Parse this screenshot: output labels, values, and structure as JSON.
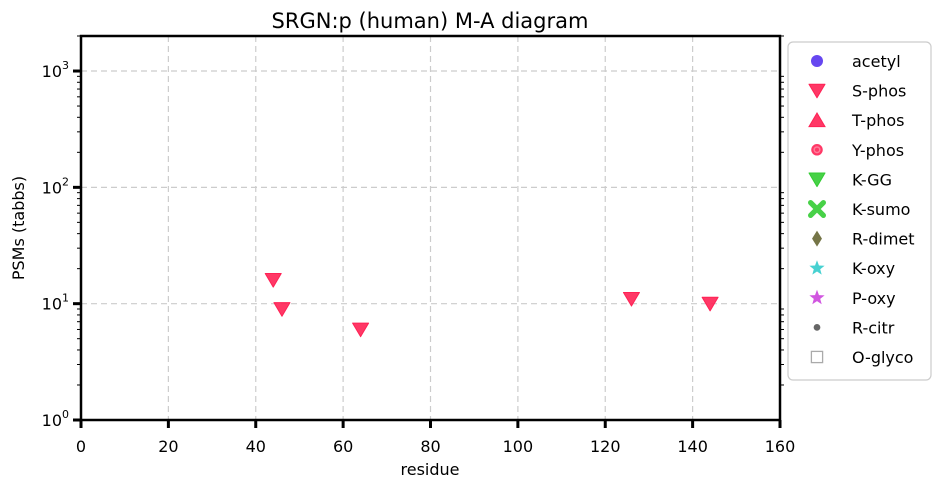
{
  "chart_data": {
    "type": "scatter",
    "title": "SRGN:p (human) M-A diagram",
    "xlabel": "residue",
    "ylabel": "PSMs (tabbs)",
    "xlim": [
      0,
      160
    ],
    "ylim": [
      1,
      2000
    ],
    "yscale": "log",
    "grid": true,
    "legend_position": "outside-right",
    "x_ticks": [
      "0",
      "20",
      "40",
      "60",
      "80",
      "100",
      "120",
      "140",
      "160"
    ],
    "y_ticks": [
      {
        "value": 1,
        "base": "10",
        "exp": "0"
      },
      {
        "value": 10,
        "base": "10",
        "exp": "1"
      },
      {
        "value": 100,
        "base": "10",
        "exp": "2"
      },
      {
        "value": 1000,
        "base": "10",
        "exp": "3"
      }
    ],
    "legend": [
      {
        "label": "acetyl",
        "marker": "circle",
        "color": "#5533ee"
      },
      {
        "label": "S-phos",
        "marker": "triangle-down",
        "color": "#ff2255"
      },
      {
        "label": "T-phos",
        "marker": "triangle-up",
        "color": "#ff2255"
      },
      {
        "label": "Y-phos",
        "marker": "circle-ring",
        "color": "#ff2255"
      },
      {
        "label": "K-GG",
        "marker": "triangle-down",
        "color": "#33cc33"
      },
      {
        "label": "K-sumo",
        "marker": "x-cross",
        "color": "#33cc33"
      },
      {
        "label": "R-dimet",
        "marker": "diamond",
        "color": "#666633"
      },
      {
        "label": "K-oxy",
        "marker": "star",
        "color": "#33cccc"
      },
      {
        "label": "P-oxy",
        "marker": "star",
        "color": "#cc44dd"
      },
      {
        "label": "R-citr",
        "marker": "dot",
        "color": "#666666"
      },
      {
        "label": "O-glyco",
        "marker": "square-open",
        "color": "#aaaaaa"
      }
    ],
    "series": [
      {
        "name": "S-phos",
        "marker": "triangle-down",
        "color": "#ff2255",
        "points": [
          {
            "x": 44,
            "y": 16
          },
          {
            "x": 46,
            "y": 9
          },
          {
            "x": 64,
            "y": 6
          },
          {
            "x": 126,
            "y": 11
          },
          {
            "x": 144,
            "y": 10
          }
        ]
      }
    ]
  }
}
